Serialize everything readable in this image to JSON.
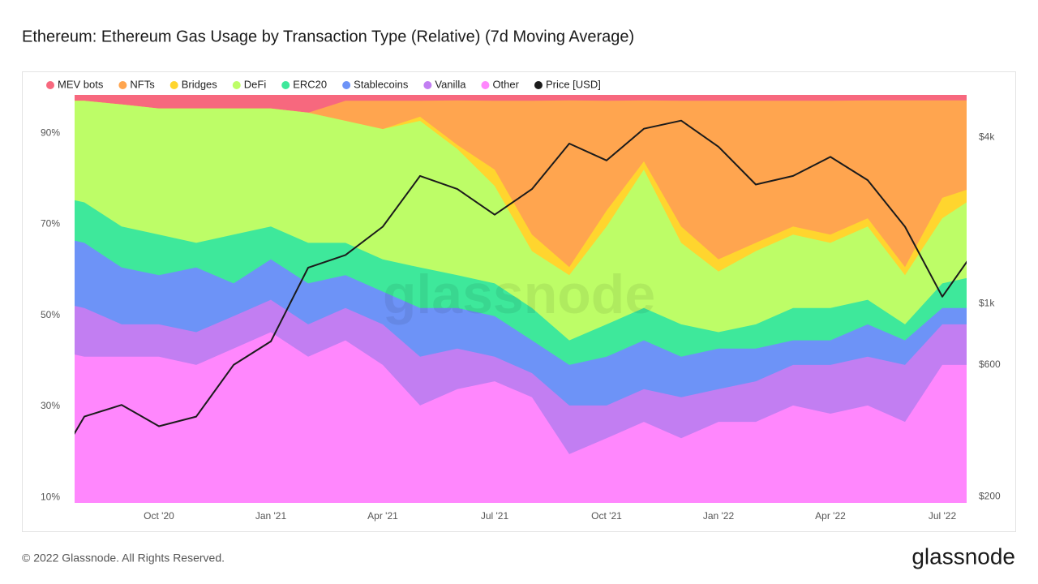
{
  "chart_data": {
    "type": "area",
    "title": "Ethereum: Ethereum Gas Usage by Transaction Type (Relative) (7d Moving Average)",
    "stacked": true,
    "x": [
      "2020-07",
      "2020-08",
      "2020-09",
      "2020-10",
      "2020-11",
      "2020-12",
      "2021-01",
      "2021-02",
      "2021-03",
      "2021-04",
      "2021-05",
      "2021-06",
      "2021-07",
      "2021-08",
      "2021-09",
      "2021-10",
      "2021-11",
      "2021-12",
      "2022-01",
      "2022-02",
      "2022-03",
      "2022-04",
      "2022-05",
      "2022-06",
      "2022-07",
      "2022-08"
    ],
    "xlim": [
      "2020-07",
      "2022-08"
    ],
    "xticks": [
      {
        "value": "2020-10",
        "label": "Oct '20"
      },
      {
        "value": "2021-01",
        "label": "Jan '21"
      },
      {
        "value": "2021-04",
        "label": "Apr '21"
      },
      {
        "value": "2021-07",
        "label": "Jul '21"
      },
      {
        "value": "2021-10",
        "label": "Oct '21"
      },
      {
        "value": "2022-01",
        "label": "Jan '22"
      },
      {
        "value": "2022-04",
        "label": "Apr '22"
      },
      {
        "value": "2022-07",
        "label": "Jul '22"
      }
    ],
    "ylim": [
      8.8,
      98.4
    ],
    "yticks": [
      {
        "value": 10,
        "label": "10%"
      },
      {
        "value": 30,
        "label": "30%"
      },
      {
        "value": 50,
        "label": "50%"
      },
      {
        "value": 70,
        "label": "70%"
      },
      {
        "value": 90,
        "label": "90%"
      }
    ],
    "y2lim": [
      190,
      5700
    ],
    "y2_log": true,
    "y2ticks": [
      {
        "value": 200,
        "label": "$200"
      },
      {
        "value": 600,
        "label": "$600"
      },
      {
        "value": 1000,
        "label": "$1k"
      },
      {
        "value": 4000,
        "label": "$4k"
      }
    ],
    "series": [
      {
        "name": "MEV bots",
        "color": "#f7687e",
        "values": [
          2.9,
          2.9,
          3.7,
          4.6,
          4.6,
          4.6,
          4.6,
          5.5,
          2.9,
          2.9,
          2.9,
          2.9,
          2.9,
          2.9,
          2.9,
          2.9,
          2.9,
          2.9,
          2.9,
          2.9,
          2.9,
          2.9,
          2.9,
          2.9,
          2.9,
          2.9
        ]
      },
      {
        "name": "NFTs",
        "color": "#ffa54f",
        "values": [
          0,
          0,
          0,
          0,
          0,
          0,
          0,
          0,
          4.4,
          6.2,
          3.5,
          9.8,
          15.1,
          29.4,
          36.6,
          24.1,
          13.4,
          27.6,
          34.8,
          31.2,
          27.6,
          29.4,
          25.9,
          36.6,
          21.4,
          18.7
        ]
      },
      {
        "name": "Bridges",
        "color": "#ffd52e",
        "values": [
          0,
          0,
          0,
          0,
          0,
          0,
          0,
          0,
          0,
          0,
          0.9,
          0.9,
          3.6,
          3.6,
          1.8,
          3.5,
          1.8,
          3.6,
          2.7,
          1.8,
          1.8,
          1.8,
          1.8,
          1.8,
          4.5,
          1.8
        ]
      },
      {
        "name": "DeFi",
        "color": "#bdfd67",
        "values": [
          20.5,
          22.3,
          26.8,
          27.7,
          29.5,
          27.7,
          25.9,
          28.6,
          26.8,
          28.6,
          32.2,
          27.7,
          21.4,
          12.5,
          14.3,
          21.5,
          30.4,
          17.9,
          13.3,
          16.1,
          16.1,
          14.3,
          16.1,
          10.8,
          14.3,
          17.9
        ]
      },
      {
        "name": "ERC20",
        "color": "#3ee89b",
        "values": [
          8.9,
          8.9,
          9.0,
          8.9,
          5.4,
          10.7,
          7.2,
          8.9,
          7.1,
          7.1,
          8.9,
          7.2,
          7.2,
          7.1,
          5.4,
          7.1,
          7.1,
          7.1,
          3.6,
          5.3,
          7.1,
          7.1,
          5.4,
          3.5,
          5.4,
          7.2
        ]
      },
      {
        "name": "Stablecoins",
        "color": "#6d93f7",
        "values": [
          14.3,
          14.3,
          12.5,
          10.8,
          14.2,
          7.2,
          8.9,
          9.0,
          7.2,
          7.2,
          10.7,
          8.9,
          8.9,
          7.2,
          8.9,
          10.7,
          10.7,
          8.9,
          8.9,
          7.2,
          5.4,
          5.4,
          7.1,
          5.4,
          3.6,
          3.6
        ]
      },
      {
        "name": "Vanilla",
        "color": "#c27ef2",
        "values": [
          10.7,
          10.7,
          7.1,
          7.1,
          7.2,
          7.1,
          7.1,
          7.1,
          7.1,
          8.9,
          10.7,
          8.9,
          5.4,
          5.3,
          10.7,
          7.2,
          7.2,
          9.0,
          7.2,
          8.9,
          8.9,
          10.7,
          10.7,
          12.5,
          8.9,
          8.9
        ]
      },
      {
        "name": "Other",
        "color": "#ff87fd",
        "values": [
          42.7,
          40.9,
          40.9,
          40.9,
          39.1,
          42.7,
          46.3,
          40.9,
          44.5,
          39.1,
          30.2,
          33.8,
          35.5,
          32.0,
          19.5,
          23.0,
          26.6,
          23.0,
          26.6,
          26.6,
          30.2,
          28.4,
          30.2,
          26.6,
          39.1,
          39.1
        ]
      },
      {
        "name": "Price [USD]",
        "color": "#1b1b1b",
        "axis": "y2",
        "type": "line",
        "values": [
          230,
          390,
          430,
          360,
          390,
          600,
          730,
          1350,
          1500,
          1900,
          2900,
          2600,
          2100,
          2600,
          3800,
          3300,
          4300,
          4600,
          3700,
          2700,
          2900,
          3400,
          2800,
          1900,
          1060,
          1650
        ]
      }
    ]
  },
  "watermark": "glassnode",
  "copyright": "© 2022 Glassnode. All Rights Reserved.",
  "logo": "glassnode"
}
